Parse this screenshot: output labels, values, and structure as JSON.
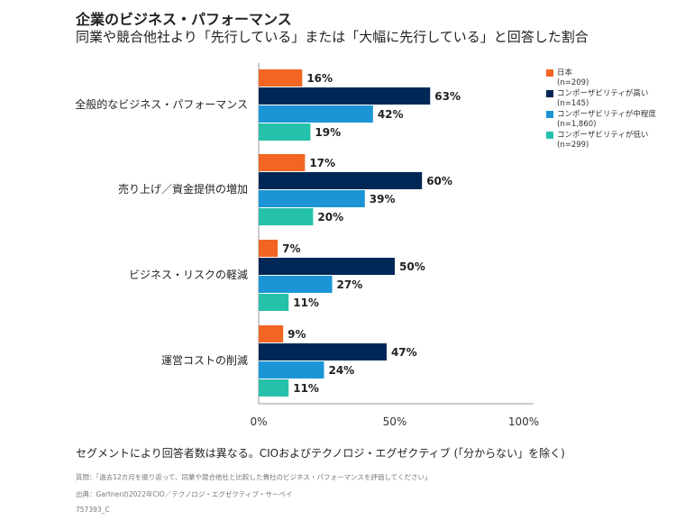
{
  "header": {
    "title": "企業のビジネス・パフォーマンス",
    "subtitle": "同業や競合他社より「先行している」または「大幅に先行している」と回答した割合"
  },
  "chart_data": {
    "type": "bar",
    "orientation": "horizontal",
    "title": "企業のビジネス・パフォーマンス",
    "categories": [
      "全般的なビジネス・パフォーマンス",
      "売り上げ／資金提供の増加",
      "ビジネス・リスクの軽減",
      "運営コストの削減"
    ],
    "series": [
      {
        "name": "日本",
        "n": "(n=209)",
        "color": "#f26522",
        "values": [
          16,
          17,
          7,
          9
        ]
      },
      {
        "name": "コンポーザビリティが高い",
        "n": "(n=145)",
        "color": "#002856",
        "values": [
          63,
          60,
          50,
          47
        ]
      },
      {
        "name": "コンポーザビリティが中程度",
        "n": "(n=1,860)",
        "color": "#1b95d5",
        "values": [
          42,
          39,
          27,
          24
        ]
      },
      {
        "name": "コンポーザビリティが低い",
        "n": "(n=299)",
        "color": "#25c1aa",
        "values": [
          19,
          20,
          11,
          11
        ]
      }
    ],
    "xlim": [
      0,
      100
    ],
    "xticks": [
      "0%",
      "50%",
      "100%"
    ],
    "legend": "top-right",
    "grid": false
  },
  "footer": {
    "note": "セグメントにより回答者数は異なる。CIOおよびテクノロジ・エグゼクティブ (「分からない」を除く)",
    "question": "質問：「過去12カ月を振り返って、同業や競合他社と比較した貴社のビジネス・パフォーマンスを評価してください」",
    "source": "出典：Gartnerの2022年CIO／テクノロジ・エグゼクティブ・サーベイ",
    "id": "757393_C"
  }
}
